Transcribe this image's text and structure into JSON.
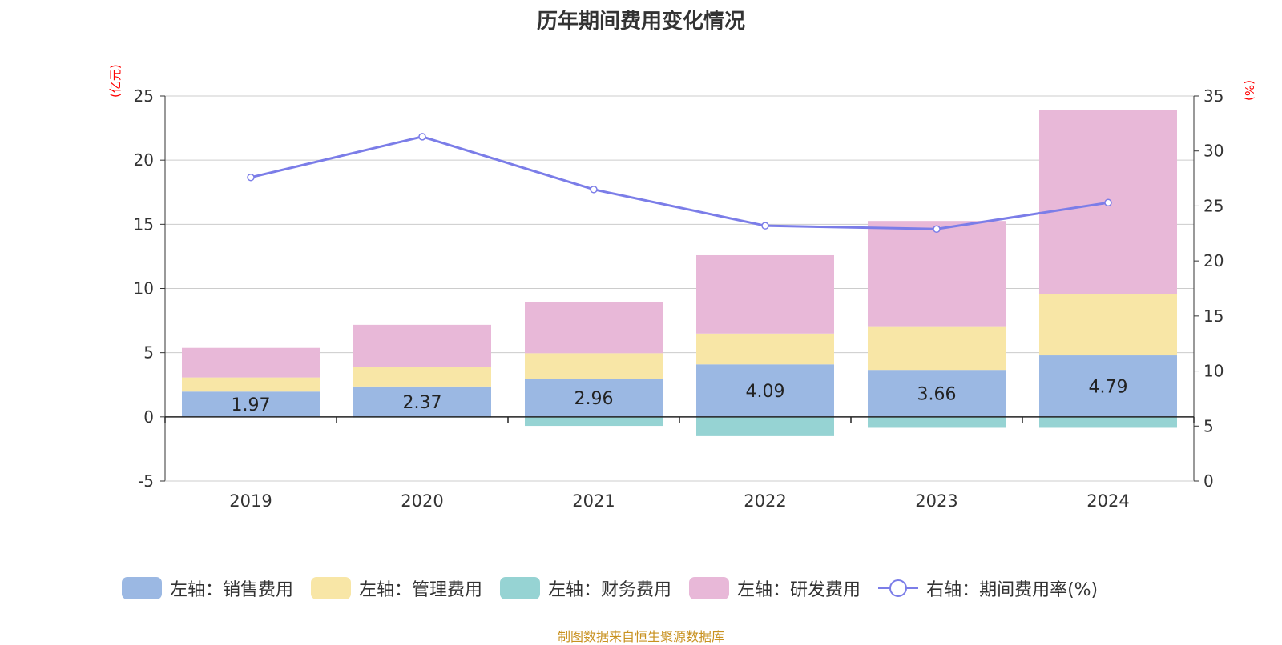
{
  "chart_data": {
    "type": "bar",
    "title": "历年期间费用变化情况",
    "left_axis_unit": "(亿元)",
    "right_axis_unit": "(%)",
    "categories": [
      "2019",
      "2020",
      "2021",
      "2022",
      "2023",
      "2024"
    ],
    "ylim": [
      -5,
      25
    ],
    "yticks": [
      -5,
      0,
      5,
      10,
      15,
      20,
      25
    ],
    "y2lim": [
      0,
      35
    ],
    "y2ticks": [
      0,
      5,
      10,
      15,
      20,
      25,
      30,
      35
    ],
    "grid": true,
    "legend_position": "bottom",
    "stacked": true,
    "series": [
      {
        "name": "左轴：销售费用",
        "type": "bar",
        "axis": "left",
        "color": "#9bb8e3",
        "values": [
          1.97,
          2.37,
          2.96,
          4.09,
          3.66,
          4.79
        ],
        "show_labels": true
      },
      {
        "name": "左轴：管理费用",
        "type": "bar",
        "axis": "left",
        "color": "#f8e6a6",
        "values": [
          1.1,
          1.5,
          2.0,
          2.4,
          3.4,
          4.8
        ],
        "show_labels": false
      },
      {
        "name": "左轴：财务费用",
        "type": "bar",
        "axis": "left",
        "color": "#96d3d3",
        "values": [
          0,
          -0.05,
          -0.7,
          -1.5,
          -0.85,
          -0.85
        ],
        "show_labels": false
      },
      {
        "name": "左轴：研发费用",
        "type": "bar",
        "axis": "left",
        "color": "#e8b8d8",
        "values": [
          2.3,
          3.3,
          4.0,
          6.1,
          8.2,
          14.3
        ],
        "show_labels": false
      },
      {
        "name": "右轴：期间费用率(%)",
        "type": "line",
        "axis": "right",
        "color": "#7b7de8",
        "values": [
          27.6,
          31.3,
          26.5,
          23.2,
          22.9,
          25.3
        ],
        "show_labels": false
      }
    ]
  },
  "source_note": "制图数据来自恒生聚源数据库"
}
